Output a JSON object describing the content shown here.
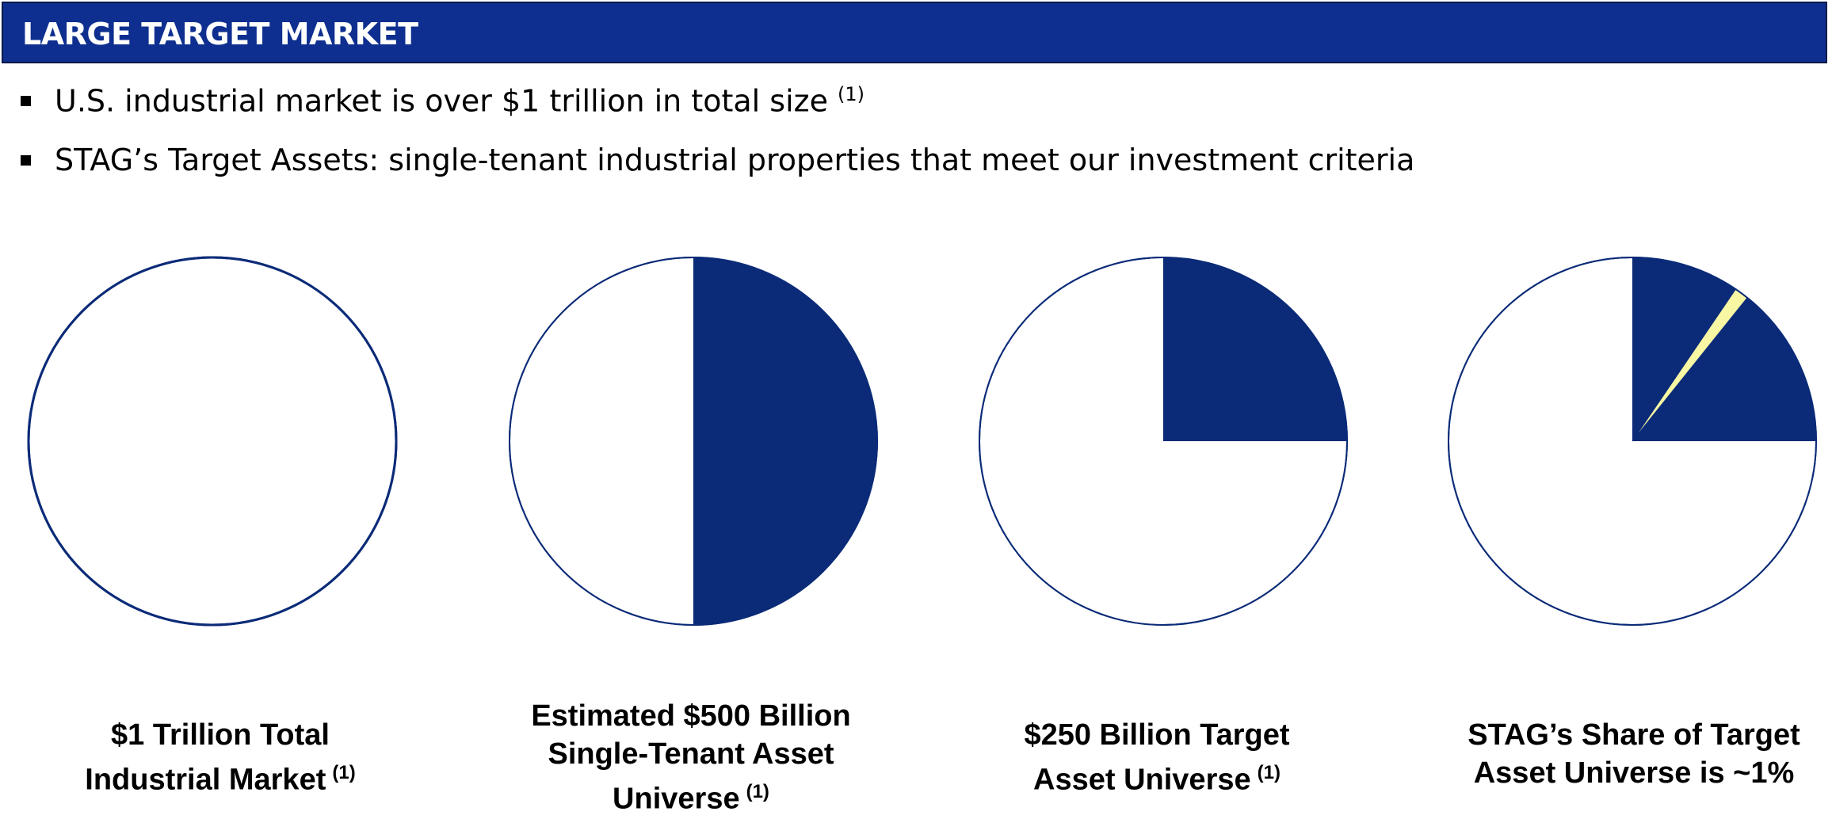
{
  "header": {
    "title": "LARGE TARGET MARKET"
  },
  "bullets": [
    {
      "text": "U.S. industrial market is over $1 trillion in total size",
      "footnote": "(1)"
    },
    {
      "text": "STAG’s Target Assets: single-tenant industrial properties that meet our investment criteria",
      "footnote": ""
    }
  ],
  "colors": {
    "header": "#0e2f8f",
    "navy": "#0b2b78",
    "highlight": "#f8f7a4",
    "outline": "#0b2b78"
  },
  "chart_data": [
    {
      "type": "pie",
      "slices": [
        {
          "fraction": 0.0
        }
      ],
      "caption_lines": [
        "$1 Trillion Total",
        "Industrial Market"
      ],
      "footnote": "(1)"
    },
    {
      "type": "pie",
      "slices": [
        {
          "fraction": 0.5
        }
      ],
      "caption_lines": [
        "Estimated $500 Billion",
        "Single-Tenant Asset",
        "Universe"
      ],
      "footnote": "(1)"
    },
    {
      "type": "pie",
      "slices": [
        {
          "fraction": 0.25
        }
      ],
      "caption_lines": [
        "$250 Billion Target",
        "Asset Universe"
      ],
      "footnote": "(1)"
    },
    {
      "type": "pie",
      "slices": [
        {
          "fraction": 0.25
        },
        {
          "fraction": 0.0125,
          "start_fraction": 0.095,
          "highlight": true
        }
      ],
      "caption_lines": [
        "STAG’s Share of Target",
        "Asset Universe is ~1%"
      ],
      "footnote": ""
    }
  ]
}
